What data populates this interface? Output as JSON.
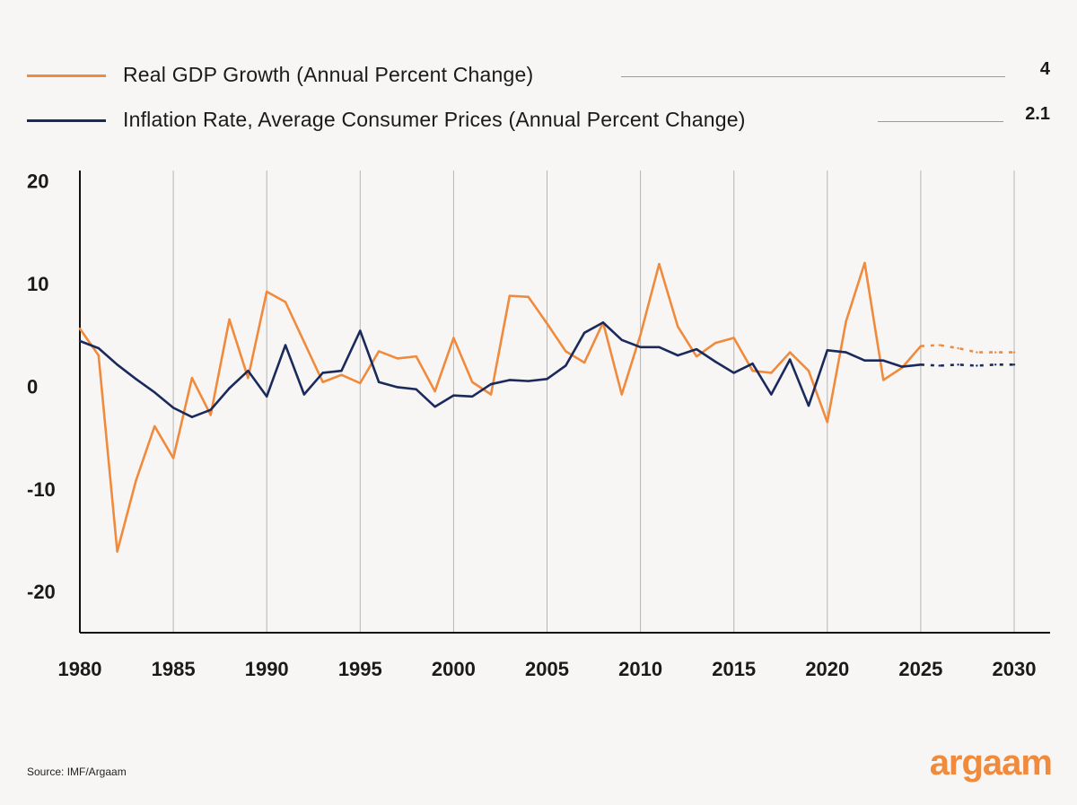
{
  "legend": [
    {
      "label": "Real GDP Growth (Annual Percent Change)",
      "value": "4",
      "color": "#f08a3c"
    },
    {
      "label": "Inflation Rate, Average Consumer Prices (Annual Percent Change)",
      "value": "2.1",
      "color": "#1b2a5c"
    }
  ],
  "source": "Source: IMF/Argaam",
  "logo": "argaam",
  "chart_data": {
    "type": "line",
    "title": "",
    "xlabel": "",
    "ylabel": "",
    "xlim": [
      1980,
      2030
    ],
    "ylim": [
      -24,
      21
    ],
    "x_ticks": [
      1980,
      1985,
      1990,
      1995,
      2000,
      2005,
      2010,
      2015,
      2020,
      2025,
      2030
    ],
    "y_ticks": [
      20,
      10,
      0,
      -10,
      -20
    ],
    "grid": "vertical",
    "legend_placement": "top",
    "projection_from": 2025,
    "years": [
      1980,
      1981,
      1982,
      1983,
      1984,
      1985,
      1986,
      1987,
      1988,
      1989,
      1990,
      1991,
      1992,
      1993,
      1994,
      1995,
      1996,
      1997,
      1998,
      1999,
      2000,
      2001,
      2002,
      2003,
      2004,
      2005,
      2006,
      2007,
      2008,
      2009,
      2010,
      2011,
      2012,
      2013,
      2014,
      2015,
      2016,
      2017,
      2018,
      2019,
      2020,
      2021,
      2022,
      2023,
      2024,
      2025,
      2026,
      2027,
      2028,
      2029,
      2030
    ],
    "series": [
      {
        "name": "Real GDP Growth (Annual Percent Change)",
        "color": "#f08a3c",
        "values": [
          5.6,
          3.0,
          -16.1,
          -9.2,
          -3.9,
          -7.0,
          0.8,
          -2.8,
          6.5,
          0.8,
          9.2,
          8.2,
          4.3,
          0.4,
          1.1,
          0.3,
          3.4,
          2.7,
          2.9,
          -0.5,
          4.7,
          0.4,
          -0.8,
          8.8,
          8.7,
          6.1,
          3.4,
          2.3,
          6.2,
          -0.8,
          5.0,
          11.9,
          5.8,
          2.9,
          4.2,
          4.7,
          1.5,
          1.3,
          3.3,
          1.5,
          -3.5,
          6.3,
          12.0,
          0.6,
          1.8,
          3.9,
          4.0,
          3.7,
          3.3,
          3.3,
          3.3
        ]
      },
      {
        "name": "Inflation Rate, Average Consumer Prices (Annual Percent Change)",
        "color": "#1b2a5c",
        "values": [
          4.4,
          3.7,
          2.1,
          0.7,
          -0.6,
          -2.1,
          -3.0,
          -2.3,
          -0.2,
          1.5,
          -1.0,
          4.0,
          -0.8,
          1.3,
          1.5,
          5.4,
          0.4,
          -0.1,
          -0.3,
          -2.0,
          -0.9,
          -1.0,
          0.2,
          0.6,
          0.5,
          0.7,
          2.0,
          5.2,
          6.2,
          4.5,
          3.8,
          3.8,
          3.0,
          3.6,
          2.4,
          1.3,
          2.2,
          -0.8,
          2.6,
          -1.9,
          3.5,
          3.3,
          2.5,
          2.5,
          1.9,
          2.1,
          2.0,
          2.1,
          2.0,
          2.1,
          2.1
        ]
      }
    ]
  }
}
